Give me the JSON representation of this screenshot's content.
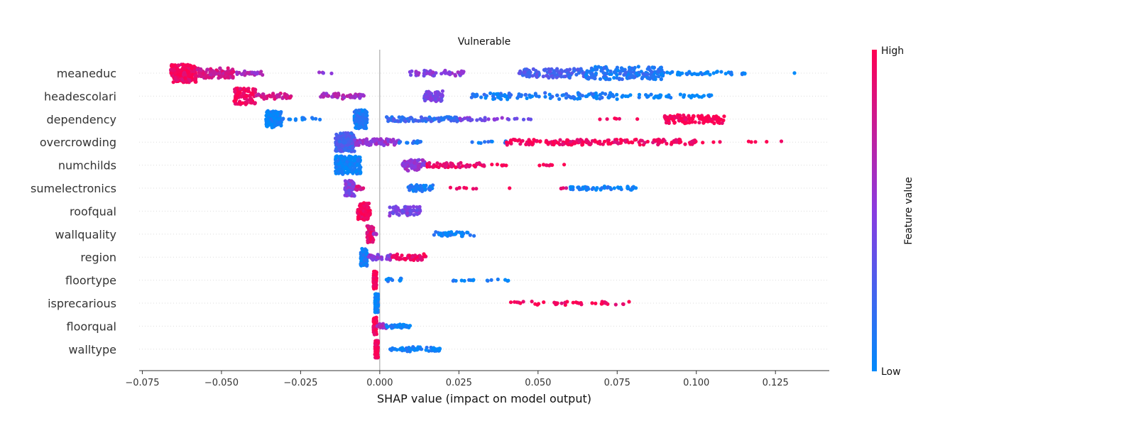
{
  "chart_data": {
    "type": "scatter",
    "title": "Vulnerable",
    "xlabel": "SHAP value (impact on model output)",
    "xlim": [
      -0.076,
      0.142
    ],
    "xticks": [
      -0.075,
      -0.05,
      -0.025,
      0.0,
      0.025,
      0.05,
      0.075,
      0.1,
      0.125
    ],
    "xtick_labels": [
      "−0.075",
      "−0.050",
      "−0.025",
      "0.000",
      "0.025",
      "0.050",
      "0.075",
      "0.100",
      "0.125"
    ],
    "grid": false,
    "colorbar": {
      "label": "Feature value",
      "high": "High",
      "low": "Low",
      "high_color": "#ff0052",
      "mid_color": "#8a3ae0",
      "low_color": "#008afb"
    },
    "features": [
      {
        "name": "meaneduc",
        "clusters": [
          {
            "from": -0.066,
            "to": -0.058,
            "value": 0.95,
            "n": 230,
            "spread": 1.0
          },
          {
            "from": -0.058,
            "to": -0.046,
            "value": 0.8,
            "n": 120,
            "spread": 0.55
          },
          {
            "from": -0.046,
            "to": -0.037,
            "value": 0.62,
            "n": 25,
            "spread": 0.25
          },
          {
            "from": -0.02,
            "to": -0.015,
            "value": 0.55,
            "n": 4,
            "spread": 0.12
          },
          {
            "from": 0.009,
            "to": 0.027,
            "value": 0.5,
            "n": 50,
            "spread": 0.3
          },
          {
            "from": 0.044,
            "to": 0.065,
            "value": 0.25,
            "n": 110,
            "spread": 0.5
          },
          {
            "from": 0.065,
            "to": 0.09,
            "value": 0.12,
            "n": 170,
            "spread": 0.7
          },
          {
            "from": 0.09,
            "to": 0.116,
            "value": 0.03,
            "n": 40,
            "spread": 0.18
          },
          {
            "from": 0.131,
            "to": 0.131,
            "value": 0.0,
            "n": 1,
            "spread": 0.05
          }
        ]
      },
      {
        "name": "headescolari",
        "clusters": [
          {
            "from": -0.046,
            "to": -0.039,
            "value": 0.95,
            "n": 90,
            "spread": 0.9
          },
          {
            "from": -0.039,
            "to": -0.028,
            "value": 0.78,
            "n": 40,
            "spread": 0.3
          },
          {
            "from": -0.019,
            "to": -0.005,
            "value": 0.62,
            "n": 50,
            "spread": 0.3
          },
          {
            "from": 0.014,
            "to": 0.02,
            "value": 0.42,
            "n": 70,
            "spread": 0.6
          },
          {
            "from": 0.029,
            "to": 0.075,
            "value": 0.1,
            "n": 110,
            "spread": 0.35
          },
          {
            "from": 0.075,
            "to": 0.106,
            "value": 0.0,
            "n": 40,
            "spread": 0.2
          }
        ]
      },
      {
        "name": "dependency",
        "clusters": [
          {
            "from": -0.036,
            "to": -0.031,
            "value": 0.02,
            "n": 130,
            "spread": 0.9
          },
          {
            "from": -0.031,
            "to": -0.018,
            "value": 0.05,
            "n": 15,
            "spread": 0.15
          },
          {
            "from": -0.008,
            "to": -0.004,
            "value": 0.1,
            "n": 160,
            "spread": 1.0
          },
          {
            "from": 0.002,
            "to": 0.025,
            "value": 0.2,
            "n": 90,
            "spread": 0.25
          },
          {
            "from": 0.025,
            "to": 0.048,
            "value": 0.45,
            "n": 30,
            "spread": 0.15
          },
          {
            "from": 0.064,
            "to": 0.085,
            "value": 0.95,
            "n": 6,
            "spread": 0.1
          },
          {
            "from": 0.09,
            "to": 0.109,
            "value": 1.0,
            "n": 110,
            "spread": 0.45
          }
        ]
      },
      {
        "name": "overcrowding",
        "clusters": [
          {
            "from": -0.014,
            "to": -0.008,
            "value": 0.25,
            "n": 260,
            "spread": 1.0
          },
          {
            "from": -0.008,
            "to": 0.006,
            "value": 0.55,
            "n": 90,
            "spread": 0.35
          },
          {
            "from": 0.006,
            "to": 0.013,
            "value": 0.15,
            "n": 15,
            "spread": 0.12
          },
          {
            "from": 0.029,
            "to": 0.04,
            "value": 0.1,
            "n": 10,
            "spread": 0.1
          },
          {
            "from": 0.04,
            "to": 0.1,
            "value": 0.95,
            "n": 180,
            "spread": 0.3
          },
          {
            "from": 0.1,
            "to": 0.128,
            "value": 1.0,
            "n": 8,
            "spread": 0.1
          }
        ]
      },
      {
        "name": "numchilds",
        "clusters": [
          {
            "from": -0.014,
            "to": -0.006,
            "value": 0.03,
            "n": 220,
            "spread": 1.0
          },
          {
            "from": 0.007,
            "to": 0.015,
            "value": 0.55,
            "n": 80,
            "spread": 0.6
          },
          {
            "from": 0.015,
            "to": 0.033,
            "value": 0.92,
            "n": 60,
            "spread": 0.25
          },
          {
            "from": 0.034,
            "to": 0.04,
            "value": 0.95,
            "n": 6,
            "spread": 0.08
          },
          {
            "from": 0.05,
            "to": 0.059,
            "value": 0.98,
            "n": 8,
            "spread": 0.08
          }
        ]
      },
      {
        "name": "sumelectronics",
        "clusters": [
          {
            "from": -0.011,
            "to": -0.008,
            "value": 0.45,
            "n": 90,
            "spread": 0.85
          },
          {
            "from": -0.008,
            "to": -0.005,
            "value": 0.8,
            "n": 15,
            "spread": 0.2
          },
          {
            "from": 0.009,
            "to": 0.017,
            "value": 0.1,
            "n": 50,
            "spread": 0.35
          },
          {
            "from": 0.021,
            "to": 0.031,
            "value": 0.95,
            "n": 8,
            "spread": 0.08
          },
          {
            "from": 0.041,
            "to": 0.041,
            "value": 0.95,
            "n": 1,
            "spread": 0.05
          },
          {
            "from": 0.057,
            "to": 0.06,
            "value": 0.85,
            "n": 4,
            "spread": 0.08
          },
          {
            "from": 0.06,
            "to": 0.081,
            "value": 0.05,
            "n": 50,
            "spread": 0.2
          }
        ]
      },
      {
        "name": "roofqual",
        "clusters": [
          {
            "from": -0.007,
            "to": -0.003,
            "value": 0.97,
            "n": 110,
            "spread": 0.95
          },
          {
            "from": 0.003,
            "to": 0.013,
            "value": 0.45,
            "n": 70,
            "spread": 0.5
          }
        ]
      },
      {
        "name": "wallquality",
        "clusters": [
          {
            "from": -0.004,
            "to": -0.002,
            "value": 0.9,
            "n": 70,
            "spread": 0.9
          },
          {
            "from": -0.002,
            "to": -0.001,
            "value": 0.6,
            "n": 8,
            "spread": 0.2
          },
          {
            "from": 0.017,
            "to": 0.03,
            "value": 0.05,
            "n": 40,
            "spread": 0.25
          }
        ]
      },
      {
        "name": "region",
        "clusters": [
          {
            "from": -0.006,
            "to": -0.004,
            "value": 0.05,
            "n": 110,
            "spread": 0.95
          },
          {
            "from": -0.004,
            "to": 0.004,
            "value": 0.5,
            "n": 35,
            "spread": 0.3
          },
          {
            "from": 0.004,
            "to": 0.015,
            "value": 0.95,
            "n": 60,
            "spread": 0.35
          }
        ]
      },
      {
        "name": "floortype",
        "clusters": [
          {
            "from": -0.002,
            "to": -0.001,
            "value": 0.97,
            "n": 90,
            "spread": 0.95
          },
          {
            "from": 0.002,
            "to": 0.007,
            "value": 0.08,
            "n": 12,
            "spread": 0.2
          },
          {
            "from": 0.021,
            "to": 0.044,
            "value": 0.05,
            "n": 16,
            "spread": 0.1
          }
        ]
      },
      {
        "name": "isprecarious",
        "clusters": [
          {
            "from": -0.0015,
            "to": -0.0005,
            "value": 0.02,
            "n": 110,
            "spread": 1.0
          },
          {
            "from": 0.04,
            "to": 0.08,
            "value": 0.97,
            "n": 40,
            "spread": 0.2
          }
        ]
      },
      {
        "name": "floorqual",
        "clusters": [
          {
            "from": -0.002,
            "to": -0.001,
            "value": 0.97,
            "n": 110,
            "spread": 0.95
          },
          {
            "from": -0.001,
            "to": 0.002,
            "value": 0.6,
            "n": 15,
            "spread": 0.3
          },
          {
            "from": 0.002,
            "to": 0.01,
            "value": 0.06,
            "n": 40,
            "spread": 0.2
          }
        ]
      },
      {
        "name": "walltype",
        "clusters": [
          {
            "from": -0.0015,
            "to": -0.0005,
            "value": 0.97,
            "n": 110,
            "spread": 0.95
          },
          {
            "from": 0.003,
            "to": 0.019,
            "value": 0.05,
            "n": 60,
            "spread": 0.25
          }
        ]
      }
    ]
  }
}
